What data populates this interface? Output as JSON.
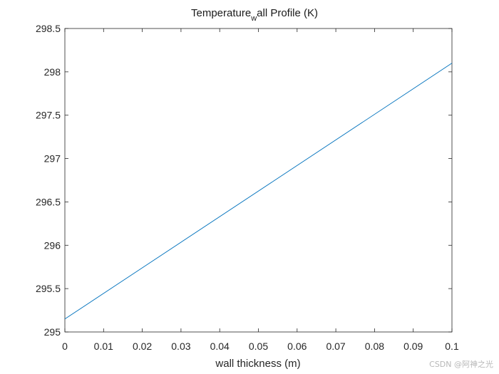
{
  "chart_data": {
    "type": "line",
    "title": {
      "main": "Temperature",
      "subscript": "w",
      "rest": "all Profile (K)"
    },
    "xlabel": "wall thickness (m)",
    "ylabel": "",
    "xlim": [
      0,
      0.1
    ],
    "ylim": [
      295,
      298.5
    ],
    "xticks": [
      0,
      0.01,
      0.02,
      0.03,
      0.04,
      0.05,
      0.06,
      0.07,
      0.08,
      0.09,
      0.1
    ],
    "xtick_labels": [
      "0",
      "0.01",
      "0.02",
      "0.03",
      "0.04",
      "0.05",
      "0.06",
      "0.07",
      "0.08",
      "0.09",
      "0.1"
    ],
    "yticks": [
      295,
      295.5,
      296,
      296.5,
      297,
      297.5,
      298,
      298.5
    ],
    "ytick_labels": [
      "295",
      "295.5",
      "296",
      "296.5",
      "297",
      "297.5",
      "298",
      "298.5"
    ],
    "grid": false,
    "series": [
      {
        "color": "#0072bd",
        "x": [
          0,
          0.1
        ],
        "y": [
          295.15,
          298.1
        ]
      }
    ]
  },
  "watermark": "CSDN @阿神之光"
}
